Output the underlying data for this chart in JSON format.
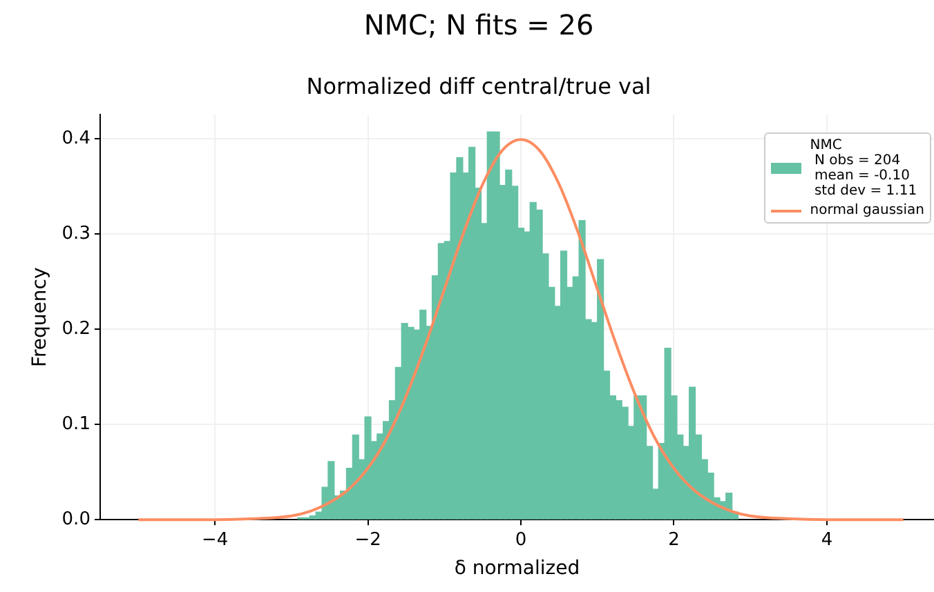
{
  "chart_data": {
    "type": "histogram",
    "title": "NMC; N fits = 26",
    "subtitle": "Normalized diff central/true val",
    "xlabel": "δ normalized",
    "ylabel": "Frequency",
    "bins": [
      -2.92,
      -2.84,
      -2.76,
      -2.68,
      -2.6,
      -2.52,
      -2.44,
      -2.36,
      -2.28,
      -2.2,
      -2.12,
      -2.04,
      -1.96,
      -1.88,
      -1.8,
      -1.72,
      -1.64,
      -1.56,
      -1.48,
      -1.4,
      -1.32,
      -1.24,
      -1.16,
      -1.08,
      -1.0,
      -0.92,
      -0.84,
      -0.76,
      -0.68,
      -0.6,
      -0.52,
      -0.44,
      -0.36,
      -0.28,
      -0.2,
      -0.12,
      -0.04,
      0.04,
      0.12,
      0.2,
      0.28,
      0.36,
      0.44,
      0.52,
      0.6,
      0.68,
      0.76,
      0.84,
      0.92,
      1.0,
      1.08,
      1.16,
      1.24,
      1.32,
      1.4,
      1.48,
      1.56,
      1.64,
      1.72,
      1.8,
      1.88,
      1.96,
      2.04,
      2.12,
      2.2,
      2.28,
      2.36,
      2.44,
      2.52,
      2.6,
      2.68,
      2.76,
      2.84
    ],
    "series": [
      {
        "name": "NMC\n N obs = 204\n mean = -0.10\n std dev = 1.11",
        "color": "#66c2a5",
        "values": [
          0.002,
          0.002,
          0.004,
          0.008,
          0.034,
          0.061,
          0.025,
          0.03,
          0.054,
          0.089,
          0.063,
          0.108,
          0.082,
          0.09,
          0.103,
          0.125,
          0.16,
          0.206,
          0.202,
          0.199,
          0.22,
          0.203,
          0.256,
          0.29,
          0.292,
          0.364,
          0.38,
          0.364,
          0.391,
          0.348,
          0.311,
          0.407,
          0.407,
          0.351,
          0.367,
          0.35,
          0.306,
          0.302,
          0.333,
          0.325,
          0.279,
          0.244,
          0.224,
          0.282,
          0.244,
          0.255,
          0.314,
          0.21,
          0.207,
          0.273,
          0.156,
          0.13,
          0.125,
          0.118,
          0.098,
          0.13,
          0.13,
          0.077,
          0.032,
          0.08,
          0.18,
          0.13,
          0.089,
          0.077,
          0.139,
          0.089,
          0.063,
          0.049,
          0.023,
          0.019,
          0.028,
          0.008
        ]
      },
      {
        "name": "normal gaussian",
        "type": "line",
        "color": "#fc8d62",
        "x": [
          -5,
          -4,
          -3.5,
          -3,
          -2.75,
          -2.5,
          -2.25,
          -2,
          -1.75,
          -1.5,
          -1.25,
          -1,
          -0.75,
          -0.5,
          -0.25,
          0,
          0.25,
          0.5,
          0.75,
          1,
          1.25,
          1.5,
          1.75,
          2,
          2.25,
          2.5,
          2.75,
          3,
          3.5,
          4,
          5
        ],
        "values": [
          0,
          0,
          0.001,
          0.004,
          0.009,
          0.018,
          0.032,
          0.054,
          0.086,
          0.13,
          0.183,
          0.242,
          0.301,
          0.352,
          0.387,
          0.399,
          0.387,
          0.352,
          0.301,
          0.242,
          0.183,
          0.13,
          0.086,
          0.054,
          0.032,
          0.018,
          0.009,
          0.004,
          0.001,
          0,
          0
        ]
      }
    ],
    "xlim": [
      -5.5,
      5.4
    ],
    "ylim": [
      0,
      0.425
    ],
    "xticks": [
      {
        "value": -4,
        "label": "−4"
      },
      {
        "value": -2,
        "label": "−2"
      },
      {
        "value": 0,
        "label": "0"
      },
      {
        "value": 2,
        "label": "2"
      },
      {
        "value": 4,
        "label": "4"
      }
    ],
    "yticks": [
      {
        "value": 0,
        "label": "0.0"
      },
      {
        "value": 0.1,
        "label": "0.1"
      },
      {
        "value": 0.2,
        "label": "0.2"
      },
      {
        "value": 0.3,
        "label": "0.3"
      },
      {
        "value": 0.4,
        "label": "0.4"
      }
    ],
    "grid": true,
    "legend": "top right"
  }
}
